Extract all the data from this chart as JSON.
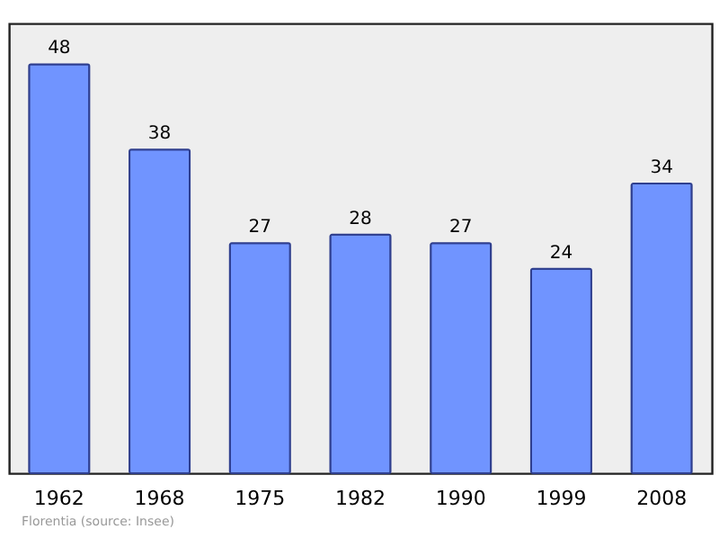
{
  "chart_data": {
    "type": "bar",
    "categories": [
      "1962",
      "1968",
      "1975",
      "1982",
      "1990",
      "1999",
      "2008"
    ],
    "values": [
      48,
      38,
      27,
      28,
      27,
      24,
      34
    ],
    "color": "#7094ff",
    "data_labels": true,
    "annotations": [
      "Florentia   (source: Insee)"
    ]
  }
}
